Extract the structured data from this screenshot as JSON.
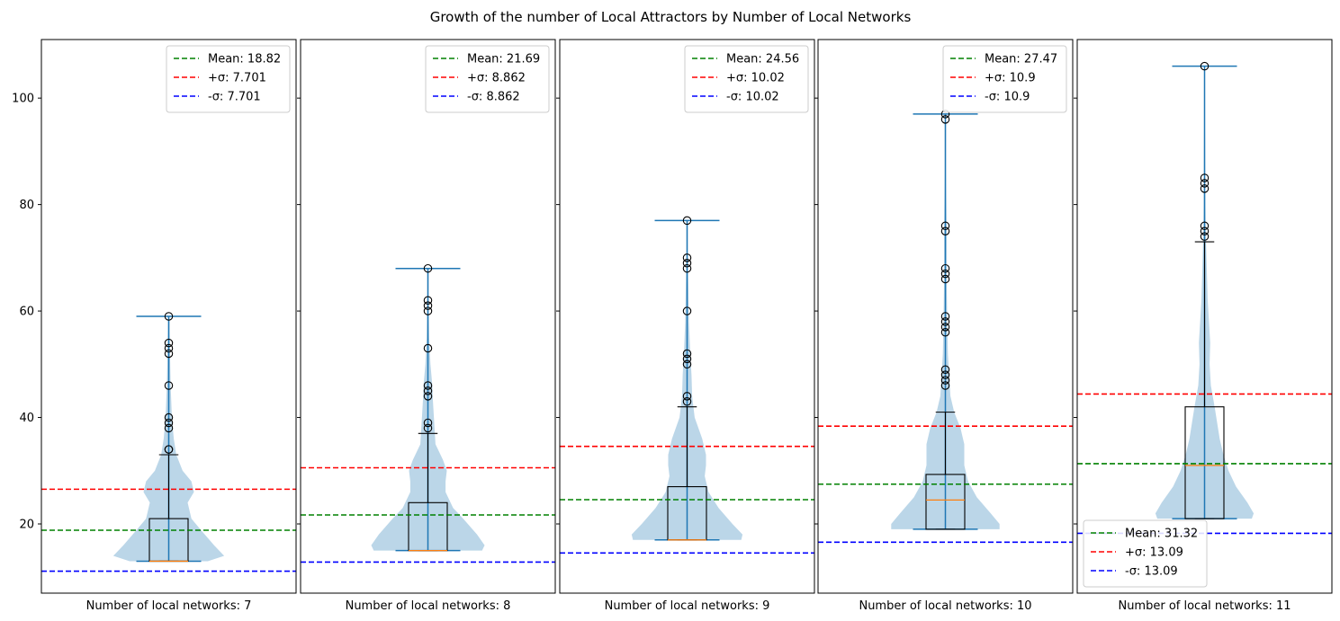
{
  "chart_data": {
    "type": "violin",
    "title": "Growth of the number of Local Attractors by Number of Local Networks",
    "ylim": [
      7,
      111
    ],
    "yticks": [
      20,
      40,
      60,
      80,
      100
    ],
    "shared_y": true,
    "legend_labels": {
      "mean": "Mean",
      "plus_sigma": "+σ",
      "minus_sigma": "-σ"
    },
    "colors": {
      "mean": "#008000",
      "plus_sigma": "#ff0000",
      "minus_sigma": "#0000ff",
      "violin": "#1f77b4",
      "median": "#ff7f0e",
      "box": "#000000"
    },
    "panels": [
      {
        "xlabel": "Number of local networks: 7",
        "legend_position": "upper right",
        "mean": 18.82,
        "sigma": 7.701,
        "mean_label": "18.82",
        "sigma_label": "7.701",
        "min": 13,
        "q1": 13,
        "median": 13,
        "q3": 21,
        "whisker_high": 33,
        "max": 59,
        "outliers": [
          34,
          34,
          38,
          39,
          40,
          46,
          52,
          53,
          54,
          59
        ],
        "density": [
          [
            13,
            0.62
          ],
          [
            14,
            0.88
          ],
          [
            16,
            0.72
          ],
          [
            19,
            0.5
          ],
          [
            21,
            0.36
          ],
          [
            24,
            0.3
          ],
          [
            26,
            0.4
          ],
          [
            28,
            0.36
          ],
          [
            30,
            0.22
          ],
          [
            33,
            0.12
          ],
          [
            36,
            0.08
          ],
          [
            40,
            0.05
          ],
          [
            46,
            0.03
          ],
          [
            52,
            0.02
          ],
          [
            59,
            0.01
          ]
        ]
      },
      {
        "xlabel": "Number of local networks: 8",
        "legend_position": "upper right",
        "mean": 21.69,
        "sigma": 8.862,
        "mean_label": "21.69",
        "sigma_label": "8.862",
        "min": 15,
        "q1": 15,
        "median": 15,
        "q3": 24,
        "whisker_high": 37,
        "max": 68,
        "outliers": [
          38,
          39,
          44,
          45,
          46,
          53,
          60,
          61,
          62,
          68
        ],
        "density": [
          [
            15,
            0.86
          ],
          [
            16,
            0.9
          ],
          [
            18,
            0.78
          ],
          [
            21,
            0.56
          ],
          [
            23,
            0.4
          ],
          [
            26,
            0.28
          ],
          [
            28,
            0.28
          ],
          [
            30,
            0.3
          ],
          [
            32,
            0.24
          ],
          [
            35,
            0.12
          ],
          [
            39,
            0.1
          ],
          [
            43,
            0.08
          ],
          [
            46,
            0.07
          ],
          [
            50,
            0.04
          ],
          [
            55,
            0.02
          ],
          [
            62,
            0.01
          ],
          [
            68,
            0.01
          ]
        ]
      },
      {
        "xlabel": "Number of local networks: 9",
        "legend_position": "upper right",
        "mean": 24.56,
        "sigma": 10.02,
        "mean_label": "24.56",
        "sigma_label": "10.02",
        "min": 17,
        "q1": 17,
        "median": 17,
        "q3": 27,
        "whisker_high": 42,
        "max": 77,
        "outliers": [
          43,
          44,
          50,
          51,
          52,
          60,
          68,
          69,
          70,
          77
        ],
        "density": [
          [
            17,
            0.86
          ],
          [
            18,
            0.88
          ],
          [
            20,
            0.72
          ],
          [
            23,
            0.5
          ],
          [
            26,
            0.34
          ],
          [
            29,
            0.28
          ],
          [
            31,
            0.3
          ],
          [
            33,
            0.3
          ],
          [
            36,
            0.24
          ],
          [
            40,
            0.12
          ],
          [
            44,
            0.08
          ],
          [
            48,
            0.07
          ],
          [
            52,
            0.05
          ],
          [
            58,
            0.03
          ],
          [
            65,
            0.02
          ],
          [
            70,
            0.01
          ],
          [
            77,
            0.01
          ]
        ]
      },
      {
        "xlabel": "Number of local networks: 10",
        "legend_position": "upper right",
        "mean": 27.47,
        "sigma": 10.9,
        "mean_label": "27.47",
        "sigma_label": "10.9",
        "min": 19,
        "q1": 19,
        "median": 24.5,
        "q3": 29.3,
        "whisker_high": 41,
        "max": 97,
        "outliers": [
          46,
          47,
          48,
          49,
          56,
          57,
          58,
          59,
          66,
          67,
          68,
          75,
          76,
          96,
          97
        ],
        "density": [
          [
            19,
            0.86
          ],
          [
            20,
            0.86
          ],
          [
            22,
            0.72
          ],
          [
            25,
            0.5
          ],
          [
            28,
            0.36
          ],
          [
            31,
            0.3
          ],
          [
            33,
            0.3
          ],
          [
            35,
            0.3
          ],
          [
            38,
            0.24
          ],
          [
            41,
            0.14
          ],
          [
            44,
            0.08
          ],
          [
            48,
            0.06
          ],
          [
            52,
            0.04
          ],
          [
            58,
            0.03
          ],
          [
            66,
            0.02
          ],
          [
            76,
            0.02
          ],
          [
            86,
            0.01
          ],
          [
            97,
            0.01
          ]
        ]
      },
      {
        "xlabel": "Number of local networks: 11",
        "legend_position": "lower left",
        "mean": 31.32,
        "sigma": 13.09,
        "mean_label": "31.32",
        "sigma_label": "13.09",
        "min": 21,
        "q1": 21,
        "median": 31,
        "q3": 42,
        "whisker_high": 73,
        "max": 106,
        "outliers": [
          74,
          75,
          76,
          83,
          84,
          85,
          106
        ],
        "density": [
          [
            21,
            0.75
          ],
          [
            22,
            0.78
          ],
          [
            24,
            0.68
          ],
          [
            27,
            0.5
          ],
          [
            30,
            0.38
          ],
          [
            33,
            0.3
          ],
          [
            36,
            0.24
          ],
          [
            39,
            0.2
          ],
          [
            42,
            0.16
          ],
          [
            46,
            0.1
          ],
          [
            50,
            0.08
          ],
          [
            54,
            0.09
          ],
          [
            58,
            0.07
          ],
          [
            62,
            0.05
          ],
          [
            66,
            0.04
          ],
          [
            70,
            0.03
          ],
          [
            74,
            0.02
          ],
          [
            80,
            0.015
          ],
          [
            90,
            0.01
          ],
          [
            100,
            0.005
          ],
          [
            106,
            0.005
          ]
        ]
      }
    ]
  }
}
